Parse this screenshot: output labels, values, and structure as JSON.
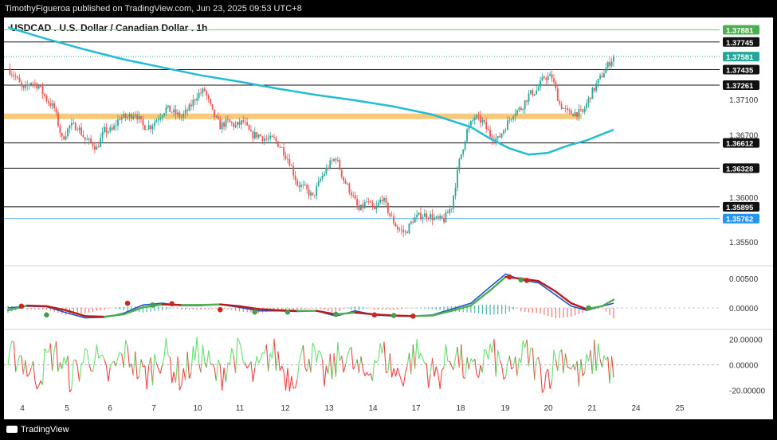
{
  "header": {
    "publish_line": "TimothyFigueroa published on TradingView.com, Jun 23, 2025 09:53 UTC+8"
  },
  "footer": {
    "brand": "TradingView"
  },
  "colors": {
    "up": "#26a69a",
    "down": "#ef5350",
    "ema": "#22bcd4",
    "zone": "#f7c97b",
    "macd_line": "#1e56c8",
    "signal_up": "#4caf50",
    "signal_down": "#b71c1c",
    "osc_up": "#66e070",
    "osc_down": "#ef4444"
  },
  "chart_data": [
    {
      "type": "candlestick",
      "title": "USDCAD . U.S. Dollar / Canadian Dollar . 1h",
      "currency": "CAD",
      "ylim": [
        1.3525,
        1.3802
      ],
      "x_ticks": [
        "4",
        "5",
        "6",
        "7",
        "10",
        "11",
        "12",
        "13",
        "14",
        "17",
        "18",
        "19",
        "20",
        "21",
        "24",
        "25"
      ],
      "y_ticks": [
        {
          "value": 1.371,
          "label": "1.37100"
        },
        {
          "value": 1.367,
          "label": "1.36700"
        },
        {
          "value": 1.36,
          "label": "1.36000"
        },
        {
          "value": 1.355,
          "label": "1.35500"
        }
      ],
      "last_price": {
        "value": 1.37581,
        "label": "1.37581"
      },
      "levels": [
        {
          "value": 1.37881,
          "label": "1.37881",
          "style": "green"
        },
        {
          "value": 1.37745,
          "label": "1.37745",
          "style": "black"
        },
        {
          "value": 1.37435,
          "label": "1.37435",
          "style": "black"
        },
        {
          "value": 1.37261,
          "label": "1.37261",
          "style": "black"
        },
        {
          "value": 1.36612,
          "label": "1.36612",
          "style": "black"
        },
        {
          "value": 1.36328,
          "label": "1.36328",
          "style": "black"
        },
        {
          "value": 1.35895,
          "label": "1.35895",
          "style": "black"
        },
        {
          "value": 1.35762,
          "label": "1.35762",
          "style": "blue"
        }
      ],
      "zone": {
        "value": 1.3691,
        "label": "support/resistance zone"
      },
      "close_path": [
        [
          0,
          1.3745
        ],
        [
          4,
          1.3735
        ],
        [
          8,
          1.372
        ],
        [
          12,
          1.373
        ],
        [
          16,
          1.3725
        ],
        [
          20,
          1.371
        ],
        [
          24,
          1.37
        ],
        [
          28,
          1.3665
        ],
        [
          32,
          1.368
        ],
        [
          36,
          1.368
        ],
        [
          40,
          1.3665
        ],
        [
          44,
          1.366
        ],
        [
          46,
          1.3655
        ],
        [
          50,
          1.3675
        ],
        [
          54,
          1.3675
        ],
        [
          58,
          1.369
        ],
        [
          62,
          1.369
        ],
        [
          66,
          1.3695
        ],
        [
          70,
          1.368
        ],
        [
          74,
          1.368
        ],
        [
          78,
          1.369
        ],
        [
          82,
          1.37
        ],
        [
          86,
          1.3695
        ],
        [
          90,
          1.369
        ],
        [
          94,
          1.37
        ],
        [
          98,
          1.3715
        ],
        [
          102,
          1.372
        ],
        [
          106,
          1.3695
        ],
        [
          110,
          1.368
        ],
        [
          114,
          1.3685
        ],
        [
          118,
          1.368
        ],
        [
          122,
          1.3685
        ],
        [
          126,
          1.367
        ],
        [
          130,
          1.367
        ],
        [
          134,
          1.3665
        ],
        [
          138,
          1.3665
        ],
        [
          142,
          1.3655
        ],
        [
          146,
          1.364
        ],
        [
          150,
          1.3615
        ],
        [
          154,
          1.361
        ],
        [
          158,
          1.36
        ],
        [
          162,
          1.362
        ],
        [
          166,
          1.3635
        ],
        [
          170,
          1.3645
        ],
        [
          174,
          1.362
        ],
        [
          178,
          1.3605
        ],
        [
          182,
          1.3585
        ],
        [
          186,
          1.3595
        ],
        [
          190,
          1.3585
        ],
        [
          194,
          1.36
        ],
        [
          198,
          1.358
        ],
        [
          202,
          1.3565
        ],
        [
          206,
          1.356
        ],
        [
          210,
          1.3575
        ],
        [
          214,
          1.358
        ],
        [
          218,
          1.358
        ],
        [
          222,
          1.3575
        ],
        [
          226,
          1.3575
        ],
        [
          230,
          1.359
        ],
        [
          234,
          1.364
        ],
        [
          238,
          1.3675
        ],
        [
          242,
          1.369
        ],
        [
          246,
          1.3685
        ],
        [
          250,
          1.367
        ],
        [
          254,
          1.3665
        ],
        [
          258,
          1.368
        ],
        [
          262,
          1.3695
        ],
        [
          266,
          1.37
        ],
        [
          270,
          1.3715
        ],
        [
          274,
          1.372
        ],
        [
          278,
          1.3735
        ],
        [
          282,
          1.3735
        ],
        [
          286,
          1.3705
        ],
        [
          290,
          1.3695
        ],
        [
          294,
          1.3695
        ],
        [
          298,
          1.3695
        ],
        [
          302,
          1.3715
        ],
        [
          306,
          1.373
        ],
        [
          310,
          1.3745
        ],
        [
          314,
          1.3758
        ]
      ],
      "ema_path": [
        [
          0,
          1.3791
        ],
        [
          20,
          1.3778
        ],
        [
          40,
          1.3766
        ],
        [
          60,
          1.3755
        ],
        [
          80,
          1.3746
        ],
        [
          100,
          1.3737
        ],
        [
          120,
          1.373
        ],
        [
          140,
          1.3722
        ],
        [
          160,
          1.3715
        ],
        [
          180,
          1.3709
        ],
        [
          200,
          1.3702
        ],
        [
          220,
          1.3693
        ],
        [
          240,
          1.3679
        ],
        [
          250,
          1.3666
        ],
        [
          260,
          1.3655
        ],
        [
          270,
          1.3648
        ],
        [
          280,
          1.365
        ],
        [
          290,
          1.3658
        ],
        [
          300,
          1.3664
        ],
        [
          314,
          1.3676
        ]
      ]
    },
    {
      "type": "macd",
      "ylim": [
        -0.0034,
        0.0068
      ],
      "y_ticks": [
        {
          "value": 0.005,
          "label": "0.00500"
        },
        {
          "value": 0,
          "label": "0.00000"
        }
      ],
      "macd_line": [
        [
          0,
          0
        ],
        [
          10,
          0.0003
        ],
        [
          20,
          0.0002
        ],
        [
          30,
          -0.0008
        ],
        [
          40,
          -0.0017
        ],
        [
          50,
          -0.0016
        ],
        [
          60,
          -0.0009
        ],
        [
          70,
          0.0005
        ],
        [
          80,
          0.0008
        ],
        [
          90,
          0.0004
        ],
        [
          100,
          0.0004
        ],
        [
          110,
          0.0006
        ],
        [
          120,
          0.0001
        ],
        [
          130,
          -0.0005
        ],
        [
          140,
          -0.0005
        ],
        [
          150,
          -0.0006
        ],
        [
          160,
          -0.0005
        ],
        [
          170,
          -0.0014
        ],
        [
          180,
          -0.0005
        ],
        [
          190,
          -0.0012
        ],
        [
          200,
          -0.0014
        ],
        [
          210,
          -0.0014
        ],
        [
          220,
          -0.0012
        ],
        [
          230,
          -0.0002
        ],
        [
          240,
          0.0008
        ],
        [
          250,
          0.0036
        ],
        [
          258,
          0.0058
        ],
        [
          266,
          0.0048
        ],
        [
          275,
          0.0043
        ],
        [
          284,
          0.0022
        ],
        [
          292,
          0.0003
        ],
        [
          300,
          -0.0004
        ],
        [
          308,
          0.0003
        ],
        [
          314,
          0.0008
        ]
      ],
      "signal_line": [
        [
          0,
          -0.0004
        ],
        [
          10,
          0.0004
        ],
        [
          20,
          0.0003
        ],
        [
          30,
          -0.0004
        ],
        [
          40,
          -0.0014
        ],
        [
          50,
          -0.0015
        ],
        [
          60,
          -0.0011
        ],
        [
          70,
          0.0001
        ],
        [
          80,
          0.0006
        ],
        [
          90,
          0.0005
        ],
        [
          100,
          0.0005
        ],
        [
          110,
          0.0006
        ],
        [
          120,
          0.0003
        ],
        [
          130,
          -0.0002
        ],
        [
          140,
          -0.0004
        ],
        [
          150,
          -0.0005
        ],
        [
          160,
          -0.0005
        ],
        [
          170,
          -0.0011
        ],
        [
          180,
          -0.0008
        ],
        [
          190,
          -0.0011
        ],
        [
          200,
          -0.0013
        ],
        [
          210,
          -0.0014
        ],
        [
          220,
          -0.0013
        ],
        [
          230,
          -0.0005
        ],
        [
          240,
          0.0004
        ],
        [
          250,
          0.003
        ],
        [
          258,
          0.0053
        ],
        [
          266,
          0.005
        ],
        [
          275,
          0.0046
        ],
        [
          284,
          0.0028
        ],
        [
          292,
          0.0008
        ],
        [
          300,
          -0.0002
        ],
        [
          308,
          0.0003
        ],
        [
          314,
          0.0014
        ]
      ],
      "cross_markers": [
        {
          "t": 7,
          "value": 0.0003,
          "kind": "bear"
        },
        {
          "t": 20,
          "value": -0.0012,
          "kind": "bull"
        },
        {
          "t": 62,
          "value": 0.0008,
          "kind": "bear"
        },
        {
          "t": 75,
          "value": 0.0005,
          "kind": "bull"
        },
        {
          "t": 85,
          "value": 0.0007,
          "kind": "bear"
        },
        {
          "t": 110,
          "value": -0.0003,
          "kind": "bear"
        },
        {
          "t": 128,
          "value": -0.0007,
          "kind": "bull"
        },
        {
          "t": 145,
          "value": -0.0007,
          "kind": "bull"
        },
        {
          "t": 170,
          "value": -0.0011,
          "kind": "bull"
        },
        {
          "t": 190,
          "value": -0.0012,
          "kind": "bear"
        },
        {
          "t": 200,
          "value": -0.0013,
          "kind": "bull"
        },
        {
          "t": 210,
          "value": -0.0014,
          "kind": "bear"
        },
        {
          "t": 260,
          "value": 0.0053,
          "kind": "bear"
        },
        {
          "t": 266,
          "value": 0.0048,
          "kind": "bull"
        },
        {
          "t": 269,
          "value": 0.0047,
          "kind": "bear"
        },
        {
          "t": 301,
          "value": 0,
          "kind": "bull"
        }
      ]
    },
    {
      "type": "oscillator",
      "ylim": [
        -26,
        26
      ],
      "y_ticks": [
        {
          "value": 20,
          "label": "20.00000"
        },
        {
          "value": 0,
          "label": "0.00000"
        },
        {
          "value": -20,
          "label": "-20.00000"
        }
      ],
      "amplitude": 15
    }
  ]
}
